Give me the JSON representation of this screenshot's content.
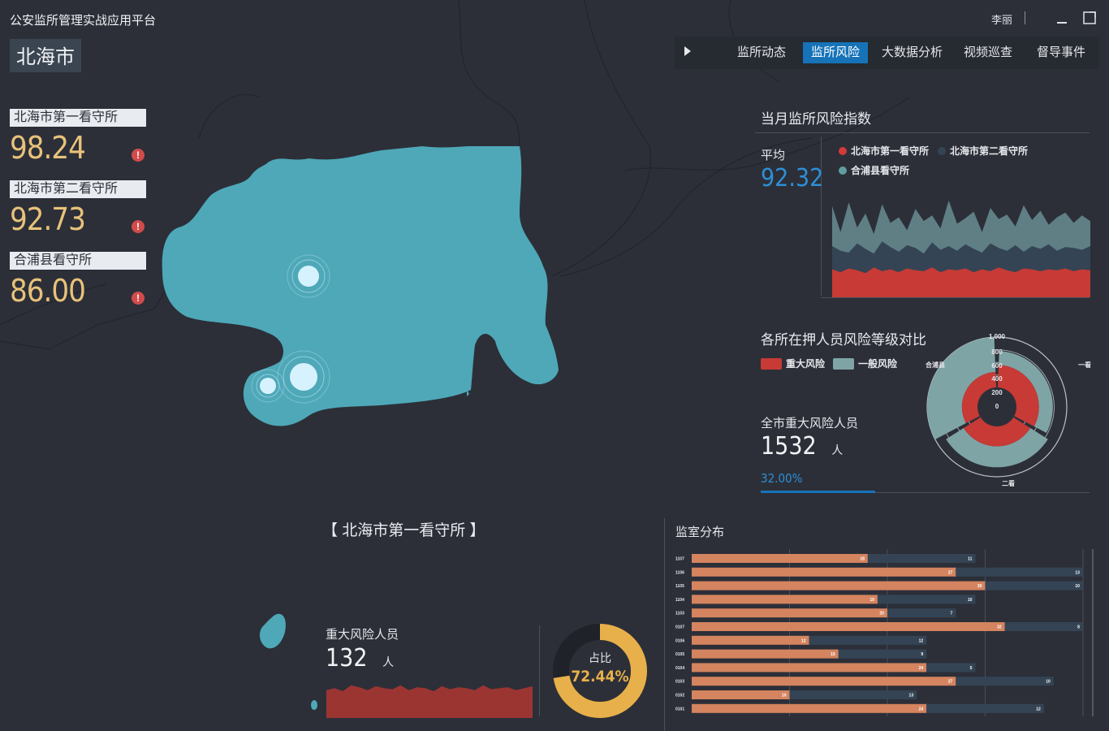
{
  "app": {
    "title": "公安监所管理实战应用平台",
    "user": "李丽",
    "window_controls": [
      "minimize-icon",
      "maximize-icon"
    ]
  },
  "city": "北海市",
  "nav": {
    "play_icon": "play-icon",
    "tabs": [
      {
        "label": "监所动态",
        "active": false
      },
      {
        "label": "监所风险",
        "active": true
      },
      {
        "label": "大数据分析",
        "active": false
      },
      {
        "label": "视频巡查",
        "active": false
      },
      {
        "label": "督导事件",
        "active": false
      }
    ],
    "active_color": "#1673b8"
  },
  "prisons": [
    {
      "name": "北海市第一看守所",
      "score": "98.24",
      "alert": "!"
    },
    {
      "name": "北海市第二看守所",
      "score": "92.73",
      "alert": "!"
    },
    {
      "name": "合浦县看守所",
      "score": "86.00",
      "alert": "!"
    }
  ],
  "colors": {
    "map_fill": "#4ea8b8",
    "score": "#e8c27a",
    "red": "#c73a35",
    "teal": "#7fa4a6",
    "navy": "#344454",
    "accent_blue": "#2d8fd6",
    "salmon": "#d4845f"
  },
  "monthly_risk": {
    "title": "当月监所风险指数",
    "avg_label": "平均",
    "avg_value": "92.32",
    "legend": [
      {
        "name": "北海市第一看守所",
        "color": "#d13b3b"
      },
      {
        "name": "北海市第二看守所",
        "color": "#344454"
      },
      {
        "name": "合浦县看守所",
        "color": "#5f9ea0"
      }
    ]
  },
  "risk_compare": {
    "title": "各所在押人员风险等级对比",
    "legend": [
      {
        "name": "重大风险",
        "color": "#c73a35"
      },
      {
        "name": "一般风险",
        "color": "#7fa4a6"
      }
    ],
    "city_label": "全市重大风险人员",
    "city_value": "1532",
    "unit": "人",
    "city_pct": "32.00%"
  },
  "chart_data": [
    {
      "type": "area",
      "series": [
        {
          "name": "北海市第一看守所",
          "values": [
            30,
            27,
            31,
            29,
            26,
            32,
            28,
            30,
            27,
            31,
            29,
            28,
            32,
            27,
            30,
            29,
            31,
            27,
            30,
            28,
            32,
            29,
            27,
            31,
            30,
            28,
            30,
            29,
            31,
            28,
            30,
            29
          ]
        },
        {
          "name": "北海市第二看守所",
          "values": [
            55,
            50,
            48,
            58,
            52,
            47,
            60,
            54,
            49,
            56,
            53,
            47,
            59,
            51,
            55,
            50,
            57,
            52,
            48,
            58,
            53,
            50,
            56,
            49,
            55,
            52,
            57,
            50,
            54,
            53,
            51,
            55
          ]
        },
        {
          "name": "合浦县看守所",
          "values": [
            98,
            70,
            102,
            75,
            90,
            68,
            100,
            80,
            86,
            72,
            95,
            82,
            88,
            74,
            104,
            79,
            85,
            92,
            70,
            96,
            84,
            89,
            76,
            99,
            83,
            93,
            78,
            86,
            91,
            80,
            88,
            82
          ]
        }
      ]
    },
    {
      "type": "bar",
      "polar": true,
      "categories": [
        "一看",
        "二看",
        "合浦县"
      ],
      "radial_ticks": [
        "0",
        "200",
        "400",
        "600",
        "800",
        "1,000"
      ],
      "series": [
        {
          "name": "重大风险",
          "values": [
            560,
            520,
            450
          ]
        },
        {
          "name": "一般风险",
          "values": [
            780,
            850,
            1000
          ]
        }
      ]
    },
    {
      "type": "bar",
      "stacked": true,
      "orientation": "horizontal",
      "categories": [
        "1107",
        "1106",
        "1105",
        "1104",
        "1103",
        "0107",
        "0106",
        "0105",
        "0104",
        "0103",
        "0102",
        "0101"
      ],
      "series": [
        {
          "name": "",
          "values": [
            18,
            27,
            30,
            19,
            20,
            32,
            12,
            15,
            24,
            27,
            10,
            24
          ]
        },
        {
          "name": "",
          "values": [
            11,
            13,
            10,
            10,
            7,
            8,
            12,
            9,
            5,
            10,
            13,
            12
          ]
        }
      ],
      "xlim": [
        0,
        41
      ]
    },
    {
      "type": "pie",
      "values": [
        72.44,
        27.56
      ],
      "label": "占比",
      "value_label": "72.44%"
    },
    {
      "type": "area",
      "series": [
        {
          "name": "",
          "values": [
            28,
            30,
            27,
            33,
            31,
            28,
            32,
            30,
            29,
            33,
            28,
            31,
            30,
            27,
            32,
            29,
            31,
            30,
            28,
            33,
            29,
            30,
            31,
            28,
            30,
            32
          ]
        }
      ]
    }
  ],
  "sub_panel": {
    "title": "【 北海市第一看守所 】",
    "risk_label": "重大风险人员",
    "risk_value": "132",
    "unit": "人",
    "cell_title": "监室分布"
  }
}
